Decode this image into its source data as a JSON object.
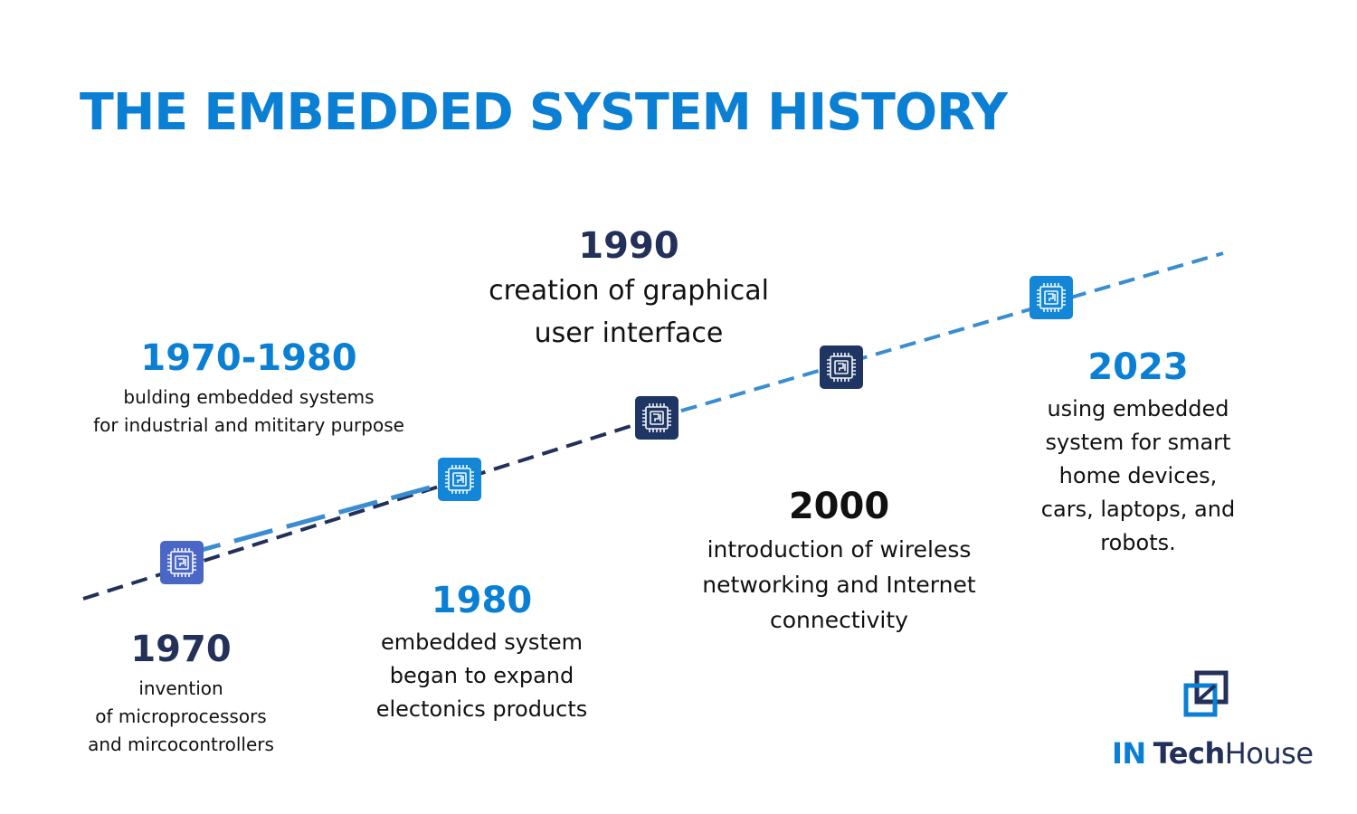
{
  "title": "THE EMBEDDED SYSTEM HISTORY",
  "events": [
    {
      "id": "1970",
      "year": "1970",
      "description": "invention\nof microprocessors\nand mircocontrollers"
    },
    {
      "id": "1970-1980",
      "year": "1970-1980",
      "description": "bulding embedded systems\nfor industrial and mititary purpose"
    },
    {
      "id": "1980",
      "year": "1980",
      "description": "embedded system\nbegan to expand\nelectonics products"
    },
    {
      "id": "1990",
      "year": "1990",
      "description": "creation of graphical\nuser interface"
    },
    {
      "id": "2000",
      "year": "2000",
      "description": "introduction of wireless\nnetworking and Internet\nconnectivity"
    },
    {
      "id": "2023",
      "year": "2023",
      "description": "using embedded\nsystem for smart\nhome devices,\ncars, laptops, and\nrobots."
    }
  ],
  "icons": {
    "timeline_node": "chip-icon",
    "logo": "in-tech-house-logo-icon"
  },
  "logo": {
    "part1": "IN",
    "part2": "Tech",
    "part3": "House"
  },
  "colors": {
    "primary_blue": "#0a7fd4",
    "navy": "#22305a",
    "dashed_light": "#3a8dd0",
    "chip_purple": "#4b67c6",
    "chip_blue": "#1386d8",
    "chip_navy": "#1f3563"
  }
}
